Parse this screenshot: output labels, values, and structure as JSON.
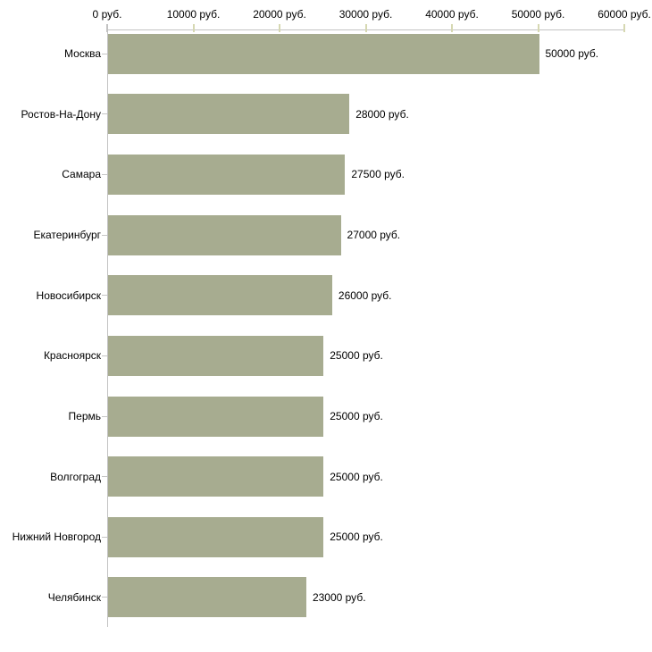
{
  "chart_data": {
    "type": "bar",
    "orientation": "horizontal",
    "title": "",
    "categories": [
      "Москва",
      "Ростов-На-Дону",
      "Самара",
      "Екатеринбург",
      "Новосибирск",
      "Красноярск",
      "Пермь",
      "Волгоград",
      "Нижний Новгород",
      "Челябинск"
    ],
    "values": [
      50000,
      28000,
      27500,
      27000,
      26000,
      25000,
      25000,
      25000,
      25000,
      23000
    ],
    "value_labels": [
      "50000 руб.",
      "28000 руб.",
      "27500 руб.",
      "27000 руб.",
      "26000 руб.",
      "25000 руб.",
      "25000 руб.",
      "25000 руб.",
      "25000 руб.",
      "23000 руб."
    ],
    "x_axis": {
      "position": "top",
      "min": 0,
      "max": 60000,
      "tick_values": [
        0,
        10000,
        20000,
        30000,
        40000,
        50000,
        60000
      ],
      "tick_labels": [
        "0 руб.",
        "10000 руб.",
        "20000 руб.",
        "30000 руб.",
        "40000 руб.",
        "50000 руб.",
        "60000 руб."
      ]
    },
    "grid": false,
    "legend": false,
    "colors": {
      "bar_fill": "#a7ac90",
      "axis_line": "#c2c2c2",
      "x_tick_mark": "#d6d8b2",
      "zero_tick_mark": "#c2c2c2",
      "category_tick_mark": "#c6c6c6",
      "label_text": "#000000",
      "background": "#ffffff"
    }
  }
}
